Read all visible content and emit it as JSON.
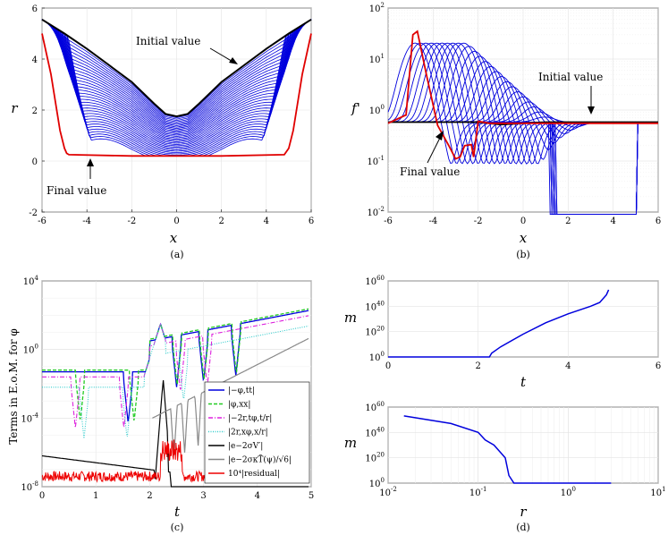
{
  "chart_data": [
    {
      "panel": "a",
      "caption": "(a)",
      "type": "line",
      "xlabel": "x",
      "ylabel": "r",
      "xlim": [
        -6,
        6
      ],
      "ylim": [
        -2,
        6
      ],
      "xticks": [
        "-6",
        "-4",
        "-2",
        "0",
        "2",
        "4",
        "6"
      ],
      "yticks": [
        "-2",
        "0",
        "2",
        "4",
        "6"
      ],
      "grid": true,
      "annotations": {
        "initial": "Initial value",
        "final": "Final value"
      },
      "series": [
        {
          "label": "initial",
          "color": "#000000",
          "x": [
            -6,
            -5,
            -4,
            -3,
            -2,
            -1,
            -0.5,
            0,
            0.5,
            1,
            2,
            3,
            4,
            5,
            6
          ],
          "y": [
            5.55,
            5.0,
            4.4,
            3.75,
            3.1,
            2.25,
            1.85,
            1.75,
            1.85,
            2.25,
            3.1,
            3.75,
            4.4,
            5.0,
            5.55
          ]
        },
        {
          "label": "final",
          "color": "#e00000",
          "x": [
            -6,
            -5.6,
            -5.2,
            -5.0,
            -4.9,
            -4.8,
            -2,
            0,
            2,
            4.8,
            5.0,
            5.2,
            5.6,
            6
          ],
          "y": [
            5.0,
            3.4,
            1.2,
            0.5,
            0.3,
            0.25,
            0.2,
            0.2,
            0.2,
            0.25,
            0.5,
            1.2,
            3.4,
            5.0
          ]
        }
      ]
    },
    {
      "panel": "b",
      "caption": "(b)",
      "type": "line",
      "xlabel": "x",
      "ylabel": "f'",
      "xlim": [
        -6,
        6
      ],
      "ylim": [
        0.01,
        100
      ],
      "yscale": "log",
      "xticks": [
        "-6",
        "-4",
        "-2",
        "0",
        "2",
        "4",
        "6"
      ],
      "yticks": [
        "10-2",
        "10-1",
        "100",
        "101",
        "102"
      ],
      "grid": true,
      "annotations": {
        "initial": "Initial value",
        "final": "Final value"
      },
      "series": [
        {
          "label": "initial",
          "color": "#000000",
          "x": [
            -6,
            -2,
            -1,
            0,
            1,
            6
          ],
          "y": [
            0.58,
            0.58,
            0.52,
            0.55,
            0.58,
            0.58
          ]
        },
        {
          "label": "final",
          "color": "#e00000",
          "x": [
            -6,
            -5.2,
            -4.9,
            -4.7,
            -4.3,
            -3.8,
            -3.3,
            -3.0,
            -2.8,
            -2.6,
            -2.3,
            -2.2,
            -2.0,
            -1.5,
            0,
            6
          ],
          "y": [
            0.55,
            0.8,
            30,
            35,
            5,
            0.5,
            0.2,
            0.11,
            0.12,
            0.2,
            0.21,
            0.12,
            0.6,
            0.55,
            0.55,
            0.55
          ]
        }
      ]
    },
    {
      "panel": "c",
      "caption": "(c)",
      "type": "line",
      "xlabel": "t",
      "ylabel": "Terms in E.o.M. for φ",
      "xlim": [
        0,
        5
      ],
      "ylim": [
        1e-08,
        10000.0
      ],
      "yscale": "log",
      "xticks": [
        "0",
        "1",
        "2",
        "3",
        "4",
        "5"
      ],
      "yticks": [
        "10-8",
        "10-4",
        "100",
        "104"
      ],
      "grid": true,
      "legend_position": "bottom-right",
      "series": [
        {
          "name": "|−φ,tt|",
          "color": "#0000dd",
          "style": "solid"
        },
        {
          "name": "|φ,xx|",
          "color": "#22cc22",
          "style": "dashed"
        },
        {
          "name": "|−2r,tφ,t/r|",
          "color": "#dd22dd",
          "style": "dashdot"
        },
        {
          "name": "|2r,xφ,x/r|",
          "color": "#33cccc",
          "style": "dotted"
        },
        {
          "name": "|e−2σV′|",
          "color": "#000000",
          "style": "solid"
        },
        {
          "name": "|e−2σκT̃(ψ)/√6|",
          "color": "#888888",
          "style": "solid"
        },
        {
          "name": "10⁴|residual|",
          "color": "#ee0000",
          "style": "solid"
        }
      ]
    },
    {
      "panel": "d-top",
      "type": "line",
      "xlabel": "t",
      "ylabel": "m",
      "xlim": [
        0,
        6
      ],
      "ylim": [
        1,
        1e+60
      ],
      "yscale": "log",
      "xticks": [
        "0",
        "2",
        "4",
        "6"
      ],
      "yticks": [
        "100",
        "1020",
        "1040",
        "1060"
      ],
      "grid": true,
      "series": [
        {
          "color": "#0000dd",
          "x": [
            0,
            2.25,
            2.3,
            2.5,
            3.0,
            3.5,
            4.0,
            4.5,
            4.7,
            4.85,
            4.9
          ],
          "y_log10": [
            0,
            0,
            3,
            8,
            18,
            27,
            34,
            40,
            43,
            49,
            53
          ]
        }
      ]
    },
    {
      "panel": "d-bottom",
      "caption": "(d)",
      "type": "line",
      "xlabel": "r",
      "ylabel": "m",
      "xscale": "log",
      "yscale": "log",
      "xlim": [
        0.01,
        10
      ],
      "ylim": [
        1,
        1e+60
      ],
      "xticks": [
        "10-2",
        "10-1",
        "100",
        "101"
      ],
      "yticks": [
        "100",
        "1020",
        "1040",
        "1060"
      ],
      "grid": true,
      "series": [
        {
          "color": "#0000dd",
          "x": [
            0.015,
            0.05,
            0.1,
            0.12,
            0.15,
            0.2,
            0.22,
            0.25,
            3.0
          ],
          "y_log10": [
            53,
            47,
            40,
            34,
            30,
            20,
            6,
            0,
            0
          ]
        }
      ]
    }
  ]
}
